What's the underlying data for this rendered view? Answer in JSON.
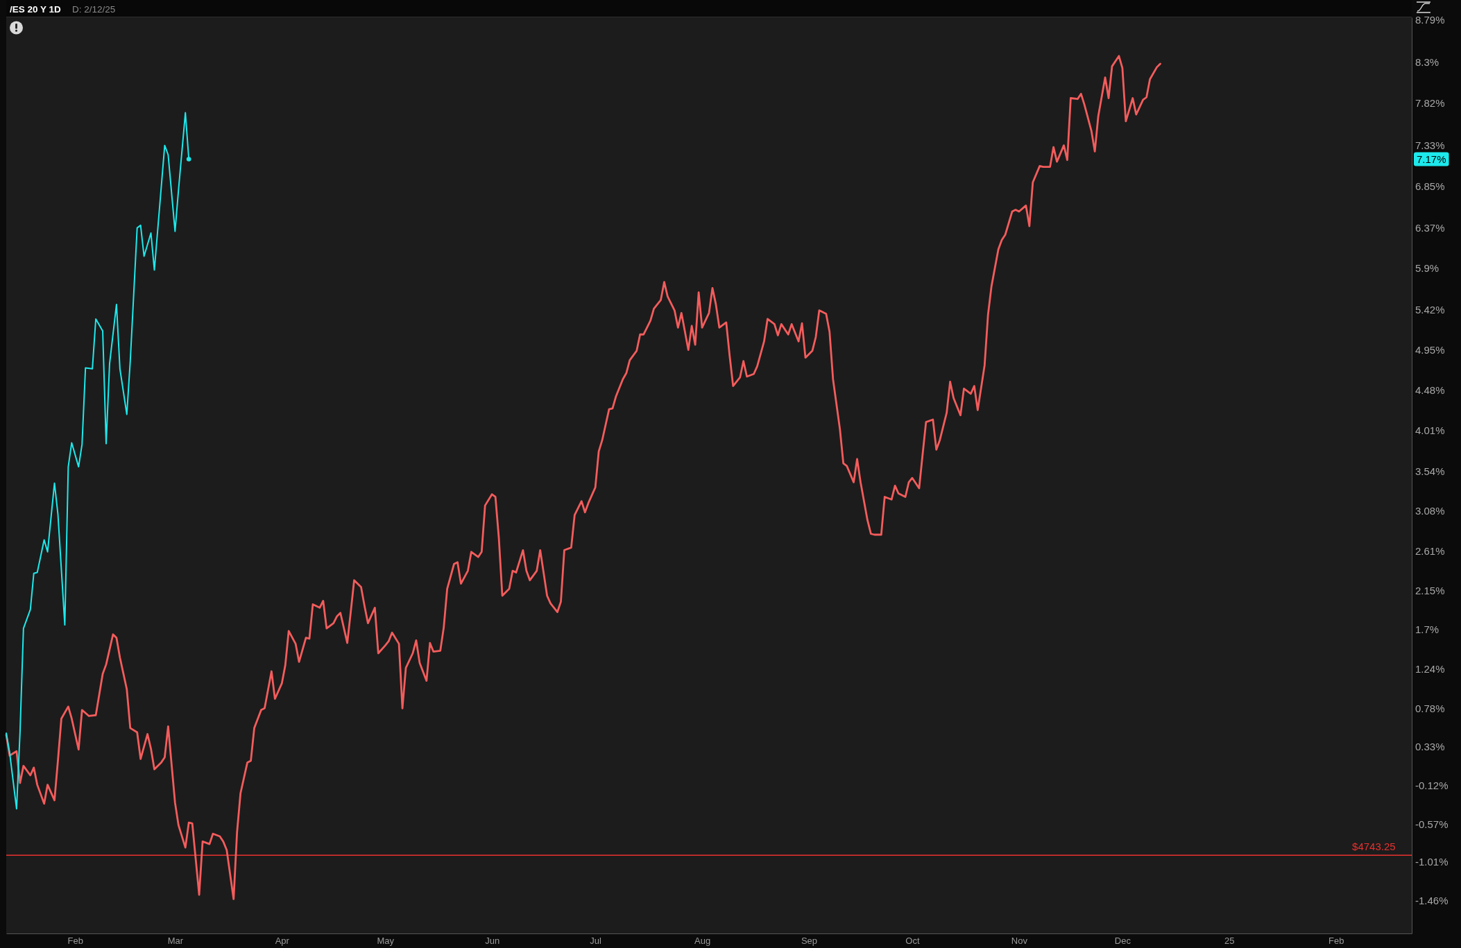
{
  "chart_data": {
    "type": "line",
    "title": "/ES 20 Y 1D",
    "subtitle": "D: 2/12/25",
    "xlim": [
      "2024-01-12",
      "2025-02-23"
    ],
    "xticks": [
      {
        "value": "2024-02-01",
        "label": "Feb"
      },
      {
        "value": "2024-03-01",
        "label": "Mar"
      },
      {
        "value": "2024-04-01",
        "label": "Apr"
      },
      {
        "value": "2024-05-01",
        "label": "May"
      },
      {
        "value": "2024-06-01",
        "label": "Jun"
      },
      {
        "value": "2024-07-01",
        "label": "Jul"
      },
      {
        "value": "2024-08-01",
        "label": "Aug"
      },
      {
        "value": "2024-09-01",
        "label": "Sep"
      },
      {
        "value": "2024-10-01",
        "label": "Oct"
      },
      {
        "value": "2024-11-01",
        "label": "Nov"
      },
      {
        "value": "2024-12-01",
        "label": "Dec"
      },
      {
        "value": "2025-01-01",
        "label": "25"
      },
      {
        "value": "2025-02-01",
        "label": "Feb"
      }
    ],
    "ylim": [
      -1.84,
      8.82
    ],
    "yticks": [
      {
        "value": -1.46,
        "label": "-1.46%"
      },
      {
        "value": -1.01,
        "label": "-1.01%"
      },
      {
        "value": -0.57,
        "label": "-0.57%"
      },
      {
        "value": -0.12,
        "label": "-0.12%"
      },
      {
        "value": 0.33,
        "label": "0.33%"
      },
      {
        "value": 0.78,
        "label": "0.78%"
      },
      {
        "value": 1.24,
        "label": "1.24%"
      },
      {
        "value": 1.7,
        "label": "1.7%"
      },
      {
        "value": 2.15,
        "label": "2.15%"
      },
      {
        "value": 2.61,
        "label": "2.61%"
      },
      {
        "value": 3.08,
        "label": "3.08%"
      },
      {
        "value": 3.54,
        "label": "3.54%"
      },
      {
        "value": 4.01,
        "label": "4.01%"
      },
      {
        "value": 4.48,
        "label": "4.48%"
      },
      {
        "value": 4.95,
        "label": "4.95%"
      },
      {
        "value": 5.42,
        "label": "5.42%"
      },
      {
        "value": 5.9,
        "label": "5.9%"
      },
      {
        "value": 6.37,
        "label": "6.37%"
      },
      {
        "value": 6.85,
        "label": "6.85%"
      },
      {
        "value": 7.33,
        "label": "7.33%"
      },
      {
        "value": 7.82,
        "label": "7.82%"
      },
      {
        "value": 8.3,
        "label": "8.3%"
      },
      {
        "value": 8.79,
        "label": "8.79%"
      }
    ],
    "ref_lines": [
      {
        "axis": "y",
        "value": -0.93,
        "color": "#e8312f"
      }
    ],
    "annotations": [
      "7.17%",
      {
        "text": "$4743.25",
        "x": "2025-02-12",
        "y": -0.93
      }
    ],
    "series": [
      {
        "color": "#f45c5c",
        "x": [
          "2024-01-12",
          "2024-01-13",
          "2024-01-15",
          "2024-01-16",
          "2024-01-17",
          "2024-01-19",
          "2024-01-20",
          "2024-01-21",
          "2024-01-23",
          "2024-01-24",
          "2024-01-26",
          "2024-01-27",
          "2024-01-28",
          "2024-01-30",
          "2024-01-31",
          "2024-02-02",
          "2024-02-03",
          "2024-02-05",
          "2024-02-07",
          "2024-02-09",
          "2024-02-10",
          "2024-02-12",
          "2024-02-13",
          "2024-02-14",
          "2024-02-16",
          "2024-02-17",
          "2024-02-19",
          "2024-02-20",
          "2024-02-22",
          "2024-02-23",
          "2024-02-24",
          "2024-02-26",
          "2024-02-27",
          "2024-02-28",
          "2024-03-01",
          "2024-03-02",
          "2024-03-04",
          "2024-03-05",
          "2024-03-06",
          "2024-03-08",
          "2024-03-09",
          "2024-03-11",
          "2024-03-12",
          "2024-03-14",
          "2024-03-15",
          "2024-03-16",
          "2024-03-18",
          "2024-03-19",
          "2024-03-20",
          "2024-03-22",
          "2024-03-23",
          "2024-03-24",
          "2024-03-26",
          "2024-03-27",
          "2024-03-29",
          "2024-03-30",
          "2024-04-01",
          "2024-04-02",
          "2024-04-03",
          "2024-04-05",
          "2024-04-06",
          "2024-04-08",
          "2024-04-09",
          "2024-04-10",
          "2024-04-12",
          "2024-04-13",
          "2024-04-14",
          "2024-04-16",
          "2024-04-17",
          "2024-04-18",
          "2024-04-20",
          "2024-04-21",
          "2024-04-22",
          "2024-04-24",
          "2024-04-25",
          "2024-04-26",
          "2024-04-28",
          "2024-04-29",
          "2024-05-01",
          "2024-05-02",
          "2024-05-03",
          "2024-05-05",
          "2024-05-06",
          "2024-05-07",
          "2024-05-09",
          "2024-05-10",
          "2024-05-11",
          "2024-05-13",
          "2024-05-14",
          "2024-05-15",
          "2024-05-17",
          "2024-05-18",
          "2024-05-19",
          "2024-05-21",
          "2024-05-22",
          "2024-05-23",
          "2024-05-25",
          "2024-05-26",
          "2024-05-28",
          "2024-05-29",
          "2024-05-30",
          "2024-06-01",
          "2024-06-02",
          "2024-06-03",
          "2024-06-04",
          "2024-06-06",
          "2024-06-07",
          "2024-06-08",
          "2024-06-10",
          "2024-06-11",
          "2024-06-12",
          "2024-06-14",
          "2024-06-15",
          "2024-06-17",
          "2024-06-18",
          "2024-06-20",
          "2024-06-21",
          "2024-06-22",
          "2024-06-24",
          "2024-06-25",
          "2024-06-27",
          "2024-06-28",
          "2024-06-29",
          "2024-07-01",
          "2024-07-02",
          "2024-07-03",
          "2024-07-05",
          "2024-07-06",
          "2024-07-07",
          "2024-07-09",
          "2024-07-10",
          "2024-07-11",
          "2024-07-13",
          "2024-07-14",
          "2024-07-15",
          "2024-07-17",
          "2024-07-18",
          "2024-07-20",
          "2024-07-21",
          "2024-07-22",
          "2024-07-24",
          "2024-07-25",
          "2024-07-26",
          "2024-07-28",
          "2024-07-29",
          "2024-07-30",
          "2024-07-31",
          "2024-08-01",
          "2024-08-03",
          "2024-08-04",
          "2024-08-05",
          "2024-08-06",
          "2024-08-08",
          "2024-08-09",
          "2024-08-10",
          "2024-08-12",
          "2024-08-13",
          "2024-08-14",
          "2024-08-16",
          "2024-08-17",
          "2024-08-19",
          "2024-08-20",
          "2024-08-22",
          "2024-08-23",
          "2024-08-24",
          "2024-08-26",
          "2024-08-27",
          "2024-08-29",
          "2024-08-30",
          "2024-08-31",
          "2024-09-02",
          "2024-09-03",
          "2024-09-04",
          "2024-09-06",
          "2024-09-07",
          "2024-09-08",
          "2024-09-10",
          "2024-09-11",
          "2024-09-12",
          "2024-09-14",
          "2024-09-15",
          "2024-09-16",
          "2024-09-18",
          "2024-09-19",
          "2024-09-20",
          "2024-09-22",
          "2024-09-23",
          "2024-09-25",
          "2024-09-26",
          "2024-09-27",
          "2024-09-29",
          "2024-09-30",
          "2024-10-01",
          "2024-10-03",
          "2024-10-04",
          "2024-10-05",
          "2024-10-07",
          "2024-10-08",
          "2024-10-09",
          "2024-10-11",
          "2024-10-12",
          "2024-10-13",
          "2024-10-15",
          "2024-10-16",
          "2024-10-18",
          "2024-10-19",
          "2024-10-20",
          "2024-10-22",
          "2024-10-23",
          "2024-10-24",
          "2024-10-26",
          "2024-10-27",
          "2024-10-28",
          "2024-10-30",
          "2024-10-31",
          "2024-11-01",
          "2024-11-03",
          "2024-11-04",
          "2024-11-05",
          "2024-11-07",
          "2024-11-08",
          "2024-11-10",
          "2024-11-11",
          "2024-11-12",
          "2024-11-14",
          "2024-11-15",
          "2024-11-16",
          "2024-11-18",
          "2024-11-19",
          "2024-11-20",
          "2024-11-22",
          "2024-11-23",
          "2024-11-24",
          "2024-11-26",
          "2024-11-27",
          "2024-11-28",
          "2024-11-30",
          "2024-12-01",
          "2024-12-02",
          "2024-12-04",
          "2024-12-05",
          "2024-12-07",
          "2024-12-08",
          "2024-12-09",
          "2024-12-11",
          "2024-12-12"
        ],
        "values": [
          0.47,
          0.23,
          0.28,
          -0.09,
          0.11,
          0.0,
          0.09,
          -0.11,
          -0.33,
          -0.11,
          -0.29,
          0.17,
          0.66,
          0.8,
          0.66,
          0.3,
          0.76,
          0.69,
          0.7,
          1.18,
          1.29,
          1.64,
          1.6,
          1.37,
          1.0,
          0.55,
          0.5,
          0.19,
          0.48,
          0.31,
          0.07,
          0.15,
          0.21,
          0.57,
          -0.32,
          -0.58,
          -0.84,
          -0.55,
          -0.56,
          -1.39,
          -0.77,
          -0.8,
          -0.68,
          -0.71,
          -0.77,
          -0.87,
          -1.44,
          -0.66,
          -0.21,
          0.15,
          0.17,
          0.55,
          0.76,
          0.78,
          1.21,
          0.89,
          1.07,
          1.28,
          1.68,
          1.53,
          1.32,
          1.6,
          1.59,
          1.99,
          1.95,
          2.03,
          1.71,
          1.77,
          1.85,
          1.89,
          1.54,
          1.9,
          2.27,
          2.19,
          1.97,
          1.77,
          1.95,
          1.42,
          1.51,
          1.56,
          1.66,
          1.53,
          0.78,
          1.25,
          1.42,
          1.57,
          1.31,
          1.1,
          1.54,
          1.44,
          1.45,
          1.72,
          2.17,
          2.46,
          2.48,
          2.23,
          2.38,
          2.6,
          2.54,
          2.6,
          3.14,
          3.27,
          3.24,
          2.76,
          2.09,
          2.17,
          2.38,
          2.36,
          2.62,
          2.38,
          2.27,
          2.38,
          2.62,
          2.09,
          2.0,
          1.9,
          2.02,
          2.62,
          2.65,
          3.03,
          3.19,
          3.06,
          3.17,
          3.35,
          3.77,
          3.9,
          4.26,
          4.27,
          4.41,
          4.61,
          4.68,
          4.83,
          4.94,
          5.13,
          5.13,
          5.29,
          5.43,
          5.53,
          5.74,
          5.57,
          5.41,
          5.21,
          5.38,
          4.95,
          5.23,
          5.01,
          5.62,
          5.21,
          5.38,
          5.67,
          5.48,
          5.21,
          5.27,
          4.88,
          4.53,
          4.63,
          4.82,
          4.64,
          4.67,
          4.76,
          5.05,
          5.31,
          5.25,
          5.12,
          5.25,
          5.13,
          5.25,
          5.05,
          5.26,
          4.86,
          4.94,
          5.1,
          5.41,
          5.37,
          5.16,
          4.61,
          4.03,
          3.63,
          3.6,
          3.41,
          3.68,
          3.41,
          2.97,
          2.81,
          2.8,
          2.8,
          3.24,
          3.21,
          3.37,
          3.28,
          3.24,
          3.41,
          3.46,
          3.34,
          3.73,
          4.11,
          4.14,
          3.79,
          3.9,
          4.22,
          4.58,
          4.39,
          4.19,
          4.5,
          4.44,
          4.53,
          4.25,
          4.77,
          5.36,
          5.69,
          6.12,
          6.23,
          6.29,
          6.56,
          6.58,
          6.56,
          6.63,
          6.39,
          6.9,
          7.09,
          7.08,
          7.08,
          7.31,
          7.14,
          7.33,
          7.16,
          7.88,
          7.87,
          7.93,
          7.8,
          7.5,
          7.26,
          7.67,
          8.12,
          7.88,
          8.25,
          8.37,
          8.23,
          7.61,
          7.88,
          7.69,
          7.86,
          7.89,
          8.1,
          8.24,
          8.28
        ]
      },
      {
        "color": "#1de9ec",
        "x": [
          "2024-01-12",
          "2024-01-13",
          "2024-01-15",
          "2024-01-16",
          "2024-01-17",
          "2024-01-19",
          "2024-01-20",
          "2024-01-21",
          "2024-01-23",
          "2024-01-24",
          "2024-01-26",
          "2024-01-27",
          "2024-01-29",
          "2024-01-30",
          "2024-01-31",
          "2024-02-02",
          "2024-02-03",
          "2024-02-04",
          "2024-02-06",
          "2024-02-07",
          "2024-02-09",
          "2024-02-10",
          "2024-02-11",
          "2024-02-13",
          "2024-02-14",
          "2024-02-16",
          "2024-02-17",
          "2024-02-19",
          "2024-02-20",
          "2024-02-21",
          "2024-02-23",
          "2024-02-24",
          "2024-02-27",
          "2024-02-28",
          "2024-03-01",
          "2024-03-02",
          "2024-03-04",
          "2024-03-05"
        ],
        "values": [
          0.49,
          0.26,
          -0.39,
          0.5,
          1.71,
          1.93,
          2.35,
          2.36,
          2.74,
          2.6,
          3.4,
          3.04,
          1.75,
          3.59,
          3.87,
          3.59,
          3.85,
          4.74,
          4.73,
          5.31,
          5.17,
          3.86,
          4.79,
          5.48,
          4.73,
          4.2,
          4.82,
          6.37,
          6.4,
          6.04,
          6.31,
          5.88,
          7.33,
          7.22,
          6.33,
          6.81,
          7.71,
          7.17
        ]
      },
      {
        "type": "scatter",
        "color": "#1de9ec",
        "x": [
          "2024-03-05"
        ],
        "values": [
          7.17
        ]
      }
    ]
  }
}
